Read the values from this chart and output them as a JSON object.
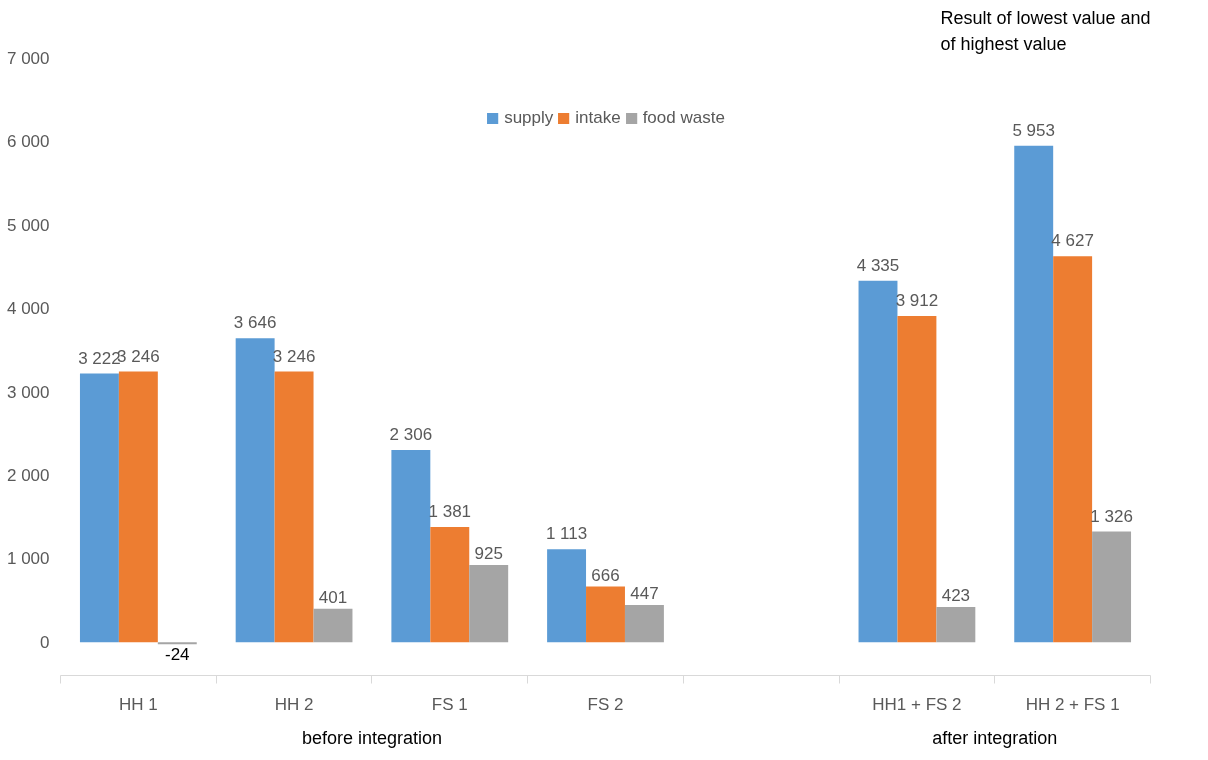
{
  "chart_data": {
    "type": "bar",
    "categories": [
      "HH 1",
      "HH 2",
      "FS 1",
      "FS 2",
      null,
      "HH1 + FS 2",
      "HH 2 + FS 1"
    ],
    "series": [
      {
        "name": "supply",
        "color": "#5b9bd5",
        "values": [
          3222,
          3646,
          2306,
          1113,
          null,
          4335,
          5953
        ],
        "value_labels": [
          "3 222",
          "3 646",
          "2 306",
          "1 113",
          null,
          "4 335",
          "5 953"
        ]
      },
      {
        "name": "intake",
        "color": "#ed7d31",
        "values": [
          3246,
          3246,
          1381,
          666,
          null,
          3912,
          4627
        ],
        "value_labels": [
          "3 246",
          "3 246",
          "1 381",
          "666",
          null,
          "3 912",
          "4 627"
        ]
      },
      {
        "name": "food waste",
        "color": "#a5a5a5",
        "values": [
          -24,
          401,
          925,
          447,
          null,
          423,
          1326
        ],
        "value_labels": [
          "-24",
          "401",
          "925",
          "447",
          null,
          "423",
          "1 326"
        ]
      }
    ],
    "ylim": [
      -400,
      7000
    ],
    "yticks": [
      {
        "value": 0,
        "label": "0"
      },
      {
        "value": 1000,
        "label": "1 000"
      },
      {
        "value": 2000,
        "label": "2 000"
      },
      {
        "value": 3000,
        "label": "3 000"
      },
      {
        "value": 4000,
        "label": "4 000"
      },
      {
        "value": 5000,
        "label": "5 000"
      },
      {
        "value": 6000,
        "label": "6 000"
      },
      {
        "value": 7000,
        "label": "7 000"
      }
    ],
    "annotations": [
      "before integration",
      "after integration",
      "Result of lowest value and of highest value"
    ],
    "legend": "top",
    "grid": false
  }
}
